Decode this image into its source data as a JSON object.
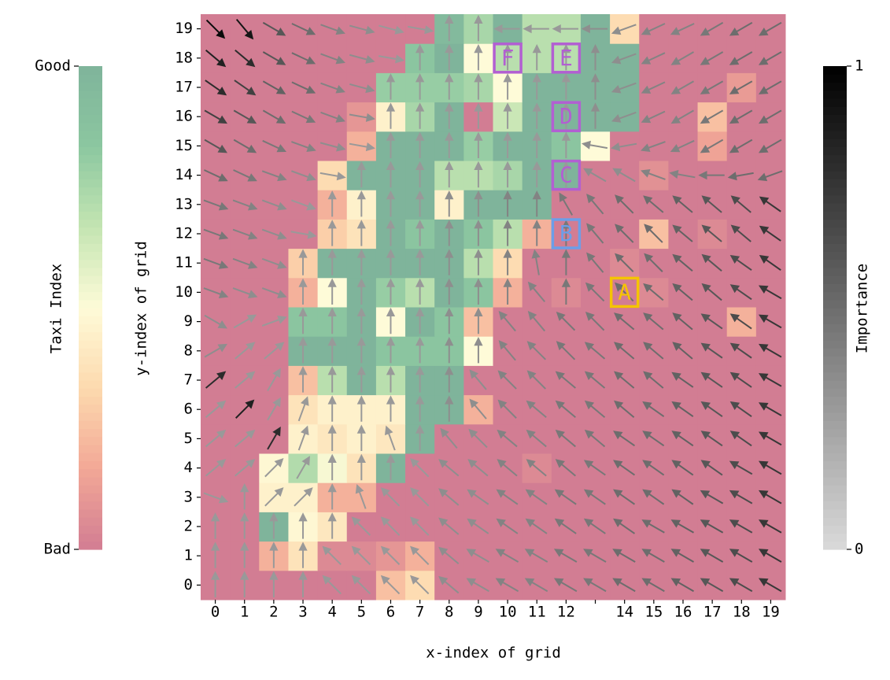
{
  "chart_data": {
    "type": "heatmap",
    "x_label": "x-index of grid",
    "y_label": "y-index of grid",
    "x_categories": [
      "0",
      "1",
      "2",
      "3",
      "4",
      "5",
      "6",
      "7",
      "8",
      "9",
      "10",
      "11",
      "12",
      null,
      "14",
      "15",
      "16",
      "17",
      "18",
      "19"
    ],
    "y_categories": [
      "0",
      "1",
      "2",
      "3",
      "4",
      "5",
      "6",
      "7",
      "8",
      "9",
      "10",
      "11",
      "12",
      "13",
      "14",
      "15",
      "16",
      "17",
      "18",
      "19"
    ],
    "z": [
      [
        0,
        0,
        0,
        0,
        0,
        0,
        0.25,
        0.35,
        0,
        0,
        0,
        0,
        0,
        0,
        0,
        0,
        0,
        0,
        0,
        0
      ],
      [
        0,
        0,
        0.2,
        0.38,
        0.05,
        0.05,
        0.1,
        0.2,
        0,
        0,
        0,
        0,
        0,
        0,
        0,
        0,
        0,
        0,
        0,
        0
      ],
      [
        0,
        0,
        1,
        0.48,
        0.4,
        0,
        0,
        0,
        0,
        0,
        0,
        0,
        0,
        0,
        0,
        0,
        0,
        0,
        0,
        0
      ],
      [
        0,
        0,
        0.45,
        0.45,
        0.2,
        0.2,
        0,
        0,
        0,
        0,
        0,
        0,
        0,
        0,
        0,
        0,
        0,
        0,
        0,
        0
      ],
      [
        0,
        0,
        0.48,
        0.72,
        0.52,
        0.38,
        1,
        0,
        0,
        0,
        0,
        0.05,
        0,
        0,
        0,
        0,
        0,
        0,
        0,
        0
      ],
      [
        0,
        0,
        0,
        0.45,
        0.4,
        0.45,
        0.4,
        1,
        0,
        0,
        0,
        0,
        0,
        0,
        0,
        0,
        0,
        0,
        0,
        0
      ],
      [
        0,
        0,
        0,
        0.38,
        0.45,
        0.45,
        0.45,
        1,
        1,
        0.2,
        0,
        0,
        0,
        0,
        0,
        0,
        0,
        0,
        0,
        0
      ],
      [
        0,
        0,
        0,
        0.25,
        0.7,
        1,
        0.7,
        1,
        1,
        0,
        0,
        0,
        0,
        0,
        0,
        0,
        0,
        0,
        0,
        0
      ],
      [
        0,
        0,
        0,
        1,
        1,
        1,
        0.85,
        0.85,
        0.85,
        0.5,
        0,
        0,
        0,
        0,
        0,
        0,
        0,
        0,
        0,
        0
      ],
      [
        0,
        0,
        0,
        0.85,
        0.85,
        1,
        0.5,
        1,
        0.85,
        0.25,
        0,
        0,
        0,
        0,
        0,
        0,
        0,
        0,
        0.2,
        0
      ],
      [
        0,
        0,
        0,
        0.2,
        0.5,
        1,
        0.8,
        0.7,
        1,
        0.85,
        0.2,
        0,
        0.05,
        0,
        0,
        0.05,
        0,
        0,
        0,
        0
      ],
      [
        0,
        0,
        0,
        0.3,
        1,
        1,
        1,
        1,
        1,
        0.7,
        0.35,
        0,
        0,
        0,
        0.05,
        0,
        0,
        0,
        0,
        0
      ],
      [
        0,
        0,
        0,
        0,
        0.3,
        0.38,
        1,
        0.85,
        1,
        0.85,
        0.7,
        0.2,
        0,
        0,
        0,
        0.25,
        0,
        0.05,
        0,
        0
      ],
      [
        0,
        0,
        0,
        0,
        0.2,
        0.45,
        1,
        1,
        0.45,
        1,
        1,
        1,
        0,
        0,
        0,
        0,
        0,
        0,
        0,
        0
      ],
      [
        0,
        0,
        0,
        0,
        0.35,
        1,
        1,
        1,
        0.7,
        0.7,
        0.75,
        1,
        1,
        0,
        0,
        0.08,
        0,
        0,
        0,
        0
      ],
      [
        0,
        0,
        0,
        0,
        0,
        0.2,
        1,
        1,
        1,
        0.8,
        1,
        1,
        0.85,
        0.5,
        0,
        0,
        0,
        0.15,
        0,
        0
      ],
      [
        0,
        0,
        0,
        0,
        0,
        0.1,
        0.45,
        0.75,
        1,
        0,
        0.65,
        1,
        1,
        1,
        1,
        0,
        0,
        0.25,
        0,
        0
      ],
      [
        0,
        0,
        0,
        0,
        0,
        0,
        0.8,
        0.8,
        0.8,
        0.75,
        0.5,
        1,
        1,
        1,
        1,
        0,
        0,
        0,
        0.12,
        0
      ],
      [
        0,
        0,
        0,
        0,
        0,
        0,
        0,
        0.85,
        1,
        0.5,
        0.7,
        0.7,
        0.7,
        1,
        1,
        0,
        0,
        0,
        0,
        0
      ],
      [
        0,
        0,
        0,
        0,
        0,
        0,
        0,
        0,
        0.95,
        0.75,
        1,
        0.7,
        0.7,
        1,
        0.35,
        0,
        0,
        0,
        0,
        0
      ]
    ],
    "colormap": [
      "#d27d93",
      "#f2a796",
      "#fdd9ae",
      "#fefbd8",
      "#c4e5b2",
      "#8cc7a0",
      "#7fb49b"
    ],
    "colorbar": {
      "label": "Taxi Index",
      "lim": [
        0,
        1
      ],
      "ticks": [
        {
          "value": 0,
          "label": "Bad"
        },
        {
          "value": 1,
          "label": "Good"
        }
      ]
    },
    "arrows": {
      "angle": [
        [
          90,
          90,
          90,
          90,
          135,
          135,
          135,
          135,
          140,
          150,
          150,
          150,
          150,
          150,
          150,
          150,
          150,
          150,
          150,
          150
        ],
        [
          90,
          90,
          90,
          90,
          135,
          135,
          135,
          135,
          140,
          150,
          150,
          150,
          150,
          150,
          150,
          150,
          150,
          150,
          150,
          150
        ],
        [
          90,
          90,
          90,
          90,
          90,
          135,
          135,
          135,
          140,
          145,
          145,
          145,
          145,
          145,
          145,
          150,
          150,
          150,
          150,
          150
        ],
        [
          -20,
          90,
          45,
          45,
          90,
          110,
          135,
          135,
          140,
          145,
          145,
          145,
          145,
          145,
          145,
          145,
          145,
          150,
          150,
          150
        ],
        [
          40,
          40,
          45,
          60,
          90,
          90,
          90,
          135,
          140,
          140,
          140,
          140,
          140,
          145,
          145,
          145,
          145,
          145,
          150,
          150
        ],
        [
          40,
          40,
          60,
          70,
          90,
          90,
          110,
          90,
          130,
          135,
          140,
          140,
          140,
          140,
          145,
          145,
          145,
          145,
          145,
          150
        ],
        [
          40,
          45,
          60,
          70,
          90,
          90,
          90,
          90,
          90,
          130,
          135,
          140,
          140,
          140,
          140,
          145,
          145,
          145,
          145,
          150
        ],
        [
          40,
          40,
          60,
          90,
          90,
          90,
          90,
          90,
          90,
          130,
          135,
          135,
          140,
          140,
          140,
          140,
          145,
          145,
          145,
          150
        ],
        [
          30,
          40,
          40,
          90,
          90,
          90,
          90,
          90,
          90,
          90,
          130,
          135,
          135,
          140,
          140,
          140,
          140,
          145,
          145,
          150
        ],
        [
          -30,
          30,
          20,
          90,
          90,
          90,
          90,
          90,
          90,
          90,
          130,
          130,
          135,
          135,
          140,
          140,
          140,
          145,
          145,
          150
        ],
        [
          -20,
          -20,
          -20,
          90,
          90,
          90,
          90,
          90,
          90,
          90,
          90,
          130,
          90,
          135,
          135,
          140,
          140,
          140,
          145,
          150
        ],
        [
          -20,
          -20,
          -20,
          90,
          90,
          90,
          90,
          90,
          90,
          90,
          90,
          100,
          90,
          130,
          135,
          135,
          140,
          140,
          145,
          145
        ],
        [
          -20,
          -20,
          -20,
          -10,
          90,
          90,
          90,
          90,
          90,
          90,
          90,
          90,
          90,
          130,
          135,
          135,
          140,
          140,
          140,
          145
        ],
        [
          -20,
          -20,
          -20,
          -20,
          90,
          90,
          90,
          90,
          90,
          90,
          90,
          90,
          120,
          130,
          135,
          140,
          140,
          140,
          140,
          145
        ],
        [
          -25,
          -25,
          -20,
          -20,
          -10,
          90,
          90,
          90,
          90,
          90,
          90,
          90,
          90,
          150,
          150,
          160,
          170,
          180,
          190,
          200
        ],
        [
          -30,
          -30,
          -25,
          -20,
          -15,
          -10,
          90,
          90,
          90,
          90,
          90,
          90,
          90,
          170,
          190,
          200,
          205,
          210,
          210,
          210
        ],
        [
          -30,
          -30,
          -30,
          -25,
          -20,
          -10,
          90,
          90,
          90,
          90,
          90,
          90,
          90,
          90,
          200,
          205,
          210,
          210,
          210,
          210
        ],
        [
          -35,
          -35,
          -30,
          -25,
          -20,
          -15,
          90,
          90,
          90,
          90,
          90,
          90,
          90,
          90,
          200,
          205,
          210,
          210,
          210,
          210
        ],
        [
          -40,
          -40,
          -30,
          -25,
          -20,
          -15,
          -10,
          90,
          90,
          90,
          90,
          90,
          90,
          90,
          200,
          205,
          210,
          210,
          210,
          210
        ],
        [
          -45,
          -50,
          -30,
          -25,
          -20,
          -15,
          -15,
          -10,
          90,
          90,
          180,
          180,
          180,
          180,
          200,
          205,
          205,
          210,
          210,
          210
        ]
      ],
      "importance": [
        [
          0.3,
          0.3,
          0.3,
          0.3,
          0.3,
          0.3,
          0.3,
          0.3,
          0.35,
          0.35,
          0.4,
          0.4,
          0.45,
          0.45,
          0.5,
          0.5,
          0.55,
          0.6,
          0.65,
          0.75
        ],
        [
          0.3,
          0.3,
          0.3,
          0.3,
          0.3,
          0.3,
          0.3,
          0.3,
          0.35,
          0.35,
          0.4,
          0.4,
          0.45,
          0.45,
          0.5,
          0.5,
          0.55,
          0.6,
          0.65,
          0.75
        ],
        [
          0.3,
          0.3,
          0.3,
          0.3,
          0.3,
          0.3,
          0.3,
          0.3,
          0.35,
          0.35,
          0.4,
          0.4,
          0.45,
          0.45,
          0.5,
          0.5,
          0.55,
          0.6,
          0.65,
          0.75
        ],
        [
          0.3,
          0.3,
          0.3,
          0.3,
          0.3,
          0.3,
          0.3,
          0.3,
          0.35,
          0.35,
          0.4,
          0.4,
          0.45,
          0.45,
          0.5,
          0.5,
          0.55,
          0.6,
          0.65,
          0.75
        ],
        [
          0.3,
          0.3,
          0.3,
          0.3,
          0.3,
          0.3,
          0.3,
          0.3,
          0.35,
          0.35,
          0.4,
          0.4,
          0.45,
          0.45,
          0.5,
          0.5,
          0.55,
          0.6,
          0.65,
          0.75
        ],
        [
          0.3,
          0.3,
          0.8,
          0.3,
          0.3,
          0.3,
          0.3,
          0.3,
          0.35,
          0.35,
          0.4,
          0.4,
          0.45,
          0.45,
          0.5,
          0.5,
          0.55,
          0.6,
          0.65,
          0.75
        ],
        [
          0.3,
          0.85,
          0.3,
          0.3,
          0.3,
          0.3,
          0.3,
          0.3,
          0.35,
          0.35,
          0.4,
          0.4,
          0.45,
          0.45,
          0.5,
          0.5,
          0.55,
          0.6,
          0.65,
          0.75
        ],
        [
          0.8,
          0.3,
          0.3,
          0.3,
          0.3,
          0.3,
          0.3,
          0.3,
          0.35,
          0.35,
          0.4,
          0.4,
          0.45,
          0.45,
          0.5,
          0.5,
          0.55,
          0.6,
          0.65,
          0.75
        ],
        [
          0.35,
          0.3,
          0.3,
          0.3,
          0.3,
          0.3,
          0.3,
          0.3,
          0.35,
          0.35,
          0.4,
          0.4,
          0.45,
          0.45,
          0.5,
          0.5,
          0.55,
          0.6,
          0.65,
          0.75
        ],
        [
          0.35,
          0.3,
          0.3,
          0.3,
          0.3,
          0.3,
          0.3,
          0.3,
          0.35,
          0.35,
          0.4,
          0.4,
          0.45,
          0.45,
          0.5,
          0.5,
          0.55,
          0.6,
          0.65,
          0.75
        ],
        [
          0.4,
          0.35,
          0.35,
          0.3,
          0.3,
          0.3,
          0.3,
          0.3,
          0.35,
          0.35,
          0.4,
          0.4,
          0.45,
          0.45,
          0.5,
          0.5,
          0.55,
          0.6,
          0.65,
          0.75
        ],
        [
          0.45,
          0.4,
          0.35,
          0.3,
          0.3,
          0.3,
          0.3,
          0.3,
          0.35,
          0.35,
          0.4,
          0.4,
          0.45,
          0.45,
          0.5,
          0.5,
          0.55,
          0.6,
          0.65,
          0.75
        ],
        [
          0.45,
          0.4,
          0.35,
          0.3,
          0.3,
          0.3,
          0.3,
          0.3,
          0.35,
          0.35,
          0.4,
          0.4,
          0.45,
          0.45,
          0.5,
          0.5,
          0.55,
          0.6,
          0.65,
          0.75
        ],
        [
          0.45,
          0.4,
          0.35,
          0.3,
          0.3,
          0.3,
          0.3,
          0.3,
          0.35,
          0.35,
          0.4,
          0.4,
          0.45,
          0.45,
          0.5,
          0.5,
          0.55,
          0.6,
          0.65,
          0.75
        ],
        [
          0.5,
          0.45,
          0.4,
          0.35,
          0.3,
          0.3,
          0.3,
          0.3,
          0.3,
          0.3,
          0.3,
          0.3,
          0.3,
          0.35,
          0.35,
          0.4,
          0.4,
          0.45,
          0.5,
          0.5
        ],
        [
          0.6,
          0.5,
          0.45,
          0.4,
          0.35,
          0.3,
          0.3,
          0.3,
          0.3,
          0.3,
          0.3,
          0.3,
          0.3,
          0.35,
          0.35,
          0.4,
          0.4,
          0.45,
          0.5,
          0.5
        ],
        [
          0.7,
          0.6,
          0.5,
          0.45,
          0.4,
          0.35,
          0.3,
          0.3,
          0.3,
          0.3,
          0.3,
          0.3,
          0.3,
          0.35,
          0.35,
          0.4,
          0.4,
          0.45,
          0.5,
          0.5
        ],
        [
          0.8,
          0.7,
          0.55,
          0.5,
          0.4,
          0.35,
          0.3,
          0.3,
          0.3,
          0.3,
          0.3,
          0.3,
          0.3,
          0.35,
          0.35,
          0.4,
          0.4,
          0.45,
          0.5,
          0.5
        ],
        [
          0.85,
          0.8,
          0.6,
          0.5,
          0.4,
          0.35,
          0.3,
          0.3,
          0.3,
          0.3,
          0.3,
          0.3,
          0.3,
          0.35,
          0.35,
          0.4,
          0.4,
          0.45,
          0.5,
          0.5
        ],
        [
          0.95,
          0.9,
          0.6,
          0.5,
          0.4,
          0.35,
          0.3,
          0.3,
          0.3,
          0.3,
          0.3,
          0.3,
          0.3,
          0.35,
          0.35,
          0.4,
          0.4,
          0.45,
          0.5,
          0.5
        ]
      ],
      "colorbar": {
        "label": "Importance",
        "lim": [
          0,
          1
        ],
        "ticks": [
          0,
          1
        ],
        "colormap": [
          "#dadada",
          "#000000"
        ]
      }
    },
    "markers": [
      {
        "label": "A",
        "x": 14,
        "y": 10,
        "color": "#f5c400"
      },
      {
        "label": "B",
        "x": 12,
        "y": 12,
        "color": "#6c9ee8"
      },
      {
        "label": "C",
        "x": 12,
        "y": 14,
        "color": "#b25fd2"
      },
      {
        "label": "D",
        "x": 12,
        "y": 16,
        "color": "#b25fd2"
      },
      {
        "label": "E",
        "x": 12,
        "y": 18,
        "color": "#b25fd2"
      },
      {
        "label": "F",
        "x": 10,
        "y": 18,
        "color": "#b25fd2"
      }
    ]
  }
}
